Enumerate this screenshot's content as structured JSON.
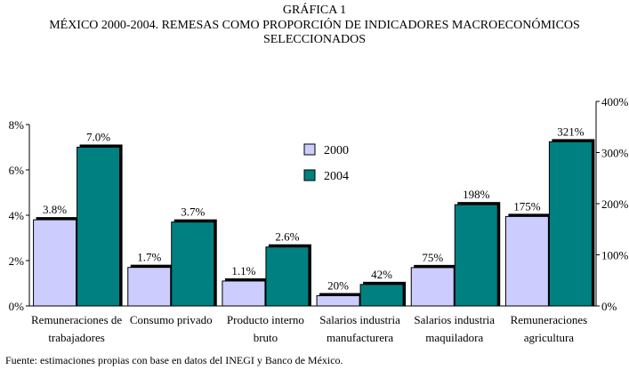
{
  "title_lines": [
    "GRÁFICA 1",
    "MÉXICO 2000-2004. REMESAS COMO PROPORCIÓN DE INDICADORES MACROECONÓMICOS",
    "SELECCIONADOS"
  ],
  "source": "Fuente: estimaciones propias con base en datos del INEGI y Banco de México.",
  "colors": {
    "s2000": "#ccccff",
    "s2004": "#008080"
  },
  "chart_data": {
    "type": "bar",
    "categories": [
      [
        "Remuneraciones de",
        "trabajadores"
      ],
      [
        "Consumo privado"
      ],
      [
        "Producto interno",
        "bruto"
      ],
      [
        "Salarios industria",
        "manufacturera"
      ],
      [
        "Salarios industria",
        "maquiladora"
      ],
      [
        "Remuneraciones",
        "agricultura"
      ]
    ],
    "series": [
      {
        "name": "2000",
        "values": [
          3.8,
          1.7,
          1.1,
          20,
          75,
          175
        ],
        "labels": [
          "3.8%",
          "1.7%",
          "1.1%",
          "20%",
          "75%",
          "175%"
        ]
      },
      {
        "name": "2004",
        "values": [
          7.0,
          3.7,
          2.6,
          42,
          198,
          321
        ],
        "labels": [
          "7.0%",
          "3.7%",
          "2.6%",
          "42%",
          "198%",
          "321%"
        ]
      }
    ],
    "axis_assignment": [
      "left",
      "left",
      "left",
      "right",
      "right",
      "right"
    ],
    "left_axis": {
      "ylim": [
        0,
        8
      ],
      "ticks": [
        "0%",
        "2%",
        "4%",
        "6%",
        "8%"
      ],
      "tick_values": [
        0,
        2,
        4,
        6,
        8
      ]
    },
    "right_axis": {
      "ylim": [
        0,
        400
      ],
      "ticks": [
        "0%",
        "100%",
        "200%",
        "300%",
        "400%"
      ],
      "tick_values": [
        0,
        100,
        200,
        300,
        400
      ]
    },
    "legend_position": "center-right of upper plot area"
  }
}
